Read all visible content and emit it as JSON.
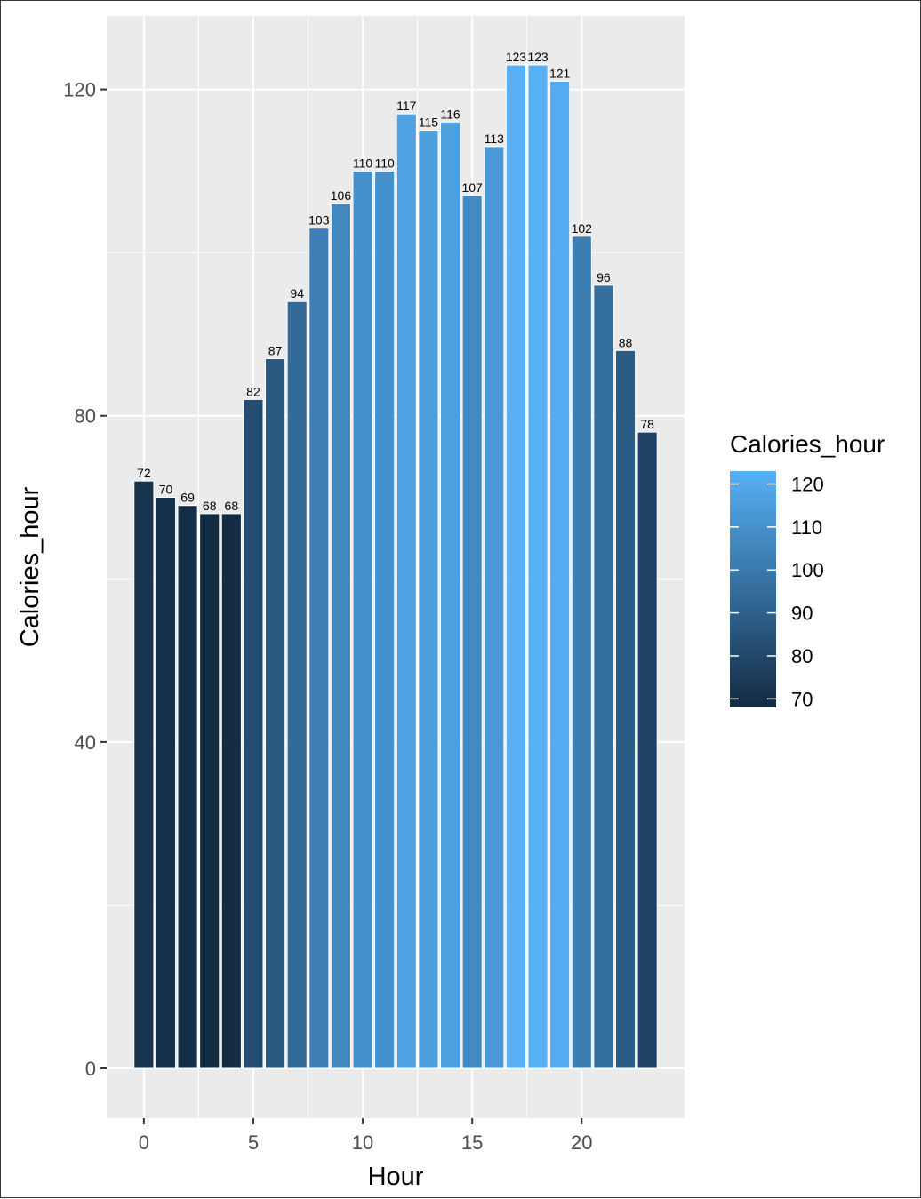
{
  "chart_data": {
    "type": "bar",
    "title": "",
    "xlabel": "Hour",
    "ylabel": "Calories_hour",
    "x": [
      0,
      1,
      2,
      3,
      4,
      5,
      6,
      7,
      8,
      9,
      10,
      11,
      12,
      13,
      14,
      15,
      16,
      17,
      18,
      19,
      20,
      21,
      22,
      23
    ],
    "values": [
      72,
      70,
      69,
      68,
      68,
      82,
      87,
      94,
      103,
      106,
      110,
      110,
      117,
      115,
      116,
      107,
      113,
      123,
      123,
      121,
      102,
      96,
      88,
      78
    ],
    "data_labels": [
      "72",
      "70",
      "69",
      "68",
      "68",
      "82",
      "87",
      "94",
      "103",
      "106",
      "110",
      "110",
      "117",
      "115",
      "116",
      "107",
      "113",
      "123",
      "123",
      "121",
      "102",
      "96",
      "88",
      "78"
    ],
    "xlim": [
      -1.7,
      24.7
    ],
    "ylim": [
      -6.1,
      129.0
    ],
    "x_ticks": [
      0,
      5,
      10,
      15,
      20
    ],
    "x_tick_labels": [
      "0",
      "5",
      "10",
      "15",
      "20"
    ],
    "y_ticks": [
      0,
      40,
      80,
      120
    ],
    "y_tick_labels": [
      "0",
      "40",
      "80",
      "120"
    ],
    "grid": true,
    "legend": {
      "title": "Calories_hour",
      "position": "right",
      "range": [
        68,
        123
      ],
      "breaks": [
        120,
        110,
        100,
        90,
        80,
        70
      ],
      "break_labels": [
        "120",
        "110",
        "100",
        "90",
        "80",
        "70"
      ],
      "low_color": "#132B43",
      "high_color": "#56B1F7"
    },
    "panel_background": "#EBEBEB",
    "grid_color": "#FFFFFF"
  }
}
